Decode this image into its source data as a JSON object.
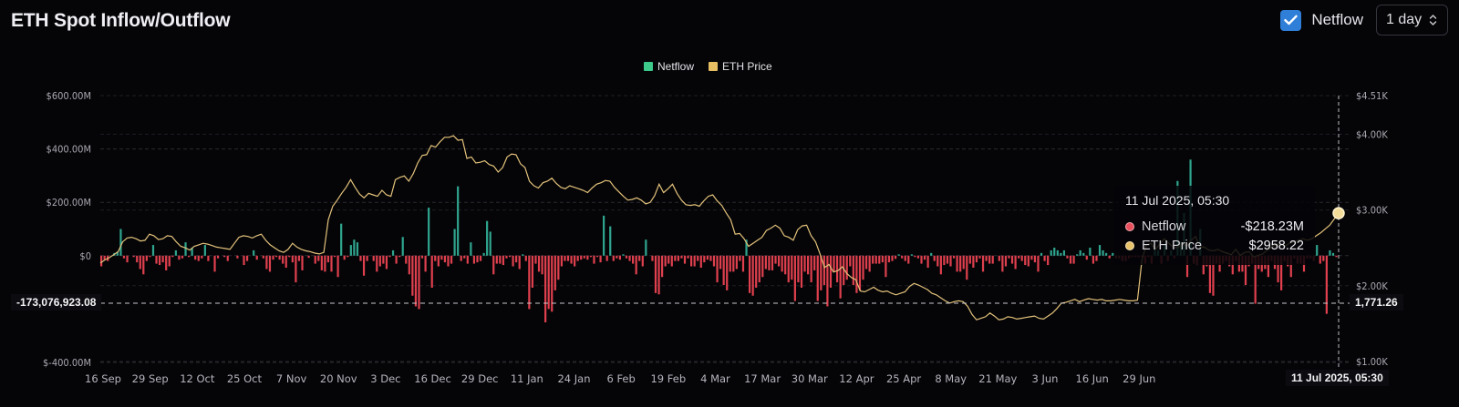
{
  "header": {
    "title": "ETH Spot Inflow/Outflow",
    "netflow_toggle_label": "Netflow",
    "netflow_checked": true,
    "interval_value": "1 day"
  },
  "legend": [
    {
      "label": "Netflow",
      "color": "#3cc98a"
    },
    {
      "label": "ETH Price",
      "color": "#e8be62"
    }
  ],
  "colors": {
    "positive": "#2fa58e",
    "negative": "#e0404e",
    "price": "#e3c27a",
    "grid": "#2a2a30",
    "background": "#050508"
  },
  "tooltip": {
    "date": "11 Jul 2025, 05:30",
    "rows": [
      {
        "name": "Netflow",
        "value": "-$218.23M",
        "dot": "#e8505e"
      },
      {
        "name": "ETH Price",
        "value": "$2958.22",
        "dot": "#e8c36a"
      }
    ]
  },
  "crosshair": {
    "left_value": "-173,076,923.08",
    "right_value": "1,771.26",
    "bottom_value": "11 Jul 2025, 05:30"
  },
  "chart_data": {
    "type": "bar",
    "title": "ETH Spot Inflow/Outflow",
    "xlabel": "",
    "ylabel": "Netflow (USD)",
    "y2label": "ETH Price (USD)",
    "ylim": [
      -400000000,
      600000000
    ],
    "y2lim": [
      1000,
      4510
    ],
    "left_ticks": [
      "$600.00M",
      "$400.00M",
      "$200.00M",
      "$0",
      "$-400.00M"
    ],
    "right_ticks": [
      "$4.51K",
      "$4.00K",
      "$3.00K",
      "$2.00K",
      "$1.00K"
    ],
    "x_ticks": [
      "16 Sep",
      "29 Sep",
      "12 Oct",
      "25 Oct",
      "7 Nov",
      "20 Nov",
      "3 Dec",
      "16 Dec",
      "29 Dec",
      "11 Jan",
      "24 Jan",
      "6 Feb",
      "19 Feb",
      "4 Mar",
      "17 Mar",
      "30 Mar",
      "12 Apr",
      "25 Apr",
      "8 May",
      "21 May",
      "3 Jun",
      "16 Jun",
      "29 Jun"
    ],
    "grid": true,
    "legend_position": "top-center",
    "series": [
      {
        "name": "Netflow",
        "unit": "USD millions",
        "type": "bar",
        "values": [
          -40,
          -15,
          -20,
          0,
          10,
          15,
          100,
          -10,
          -25,
          0,
          -5,
          -25,
          -50,
          -70,
          -20,
          -5,
          40,
          -30,
          -35,
          -25,
          -55,
          -40,
          -5,
          20,
          -15,
          -10,
          50,
          -5,
          30,
          -15,
          -20,
          -10,
          40,
          -20,
          0,
          -60,
          -10,
          0,
          -5,
          -20,
          0,
          0,
          -10,
          0,
          -35,
          -20,
          0,
          20,
          -15,
          0,
          -10,
          -50,
          -60,
          -15,
          -5,
          -15,
          -30,
          -45,
          -5,
          -25,
          -100,
          -20,
          -55,
          0,
          -8,
          0,
          -30,
          -20,
          -55,
          -60,
          -25,
          -60,
          -5,
          -80,
          120,
          -15,
          -5,
          40,
          60,
          50,
          -20,
          -75,
          -20,
          0,
          -20,
          -60,
          -40,
          -30,
          -50,
          -5,
          20,
          -30,
          -5,
          70,
          -30,
          -70,
          -150,
          -190,
          -200,
          -10,
          -60,
          180,
          -120,
          -20,
          -40,
          -15,
          -25,
          -40,
          -30,
          100,
          260,
          -20,
          -10,
          -30,
          50,
          -30,
          -25,
          -20,
          10,
          130,
          90,
          -70,
          -30,
          -30,
          -35,
          -10,
          -5,
          -40,
          -25,
          -50,
          5,
          -20,
          -200,
          -120,
          -30,
          -60,
          -70,
          -250,
          -200,
          -210,
          -130,
          -90,
          -40,
          -20,
          -20,
          -30,
          -40,
          -20,
          -15,
          -10,
          -15,
          -5,
          -30,
          -5,
          -25,
          150,
          -20,
          110,
          -20,
          -10,
          -15,
          5,
          -10,
          -20,
          -30,
          -70,
          -20,
          -40,
          60,
          0,
          -20,
          -140,
          -145,
          -80,
          -40,
          -30,
          -40,
          -20,
          -20,
          -10,
          -30,
          -10,
          -40,
          -40,
          -20,
          -45,
          -25,
          -15,
          -20,
          -40,
          -100,
          -50,
          -110,
          -130,
          -60,
          -60,
          -50,
          -20,
          -60,
          60,
          -140,
          -150,
          -120,
          -100,
          -80,
          -50,
          -55,
          -55,
          -30,
          -40,
          -60,
          -70,
          -100,
          -90,
          -170,
          -100,
          -120,
          -60,
          -70,
          -100,
          -55,
          -170,
          -130,
          -110,
          -190,
          -120,
          -60,
          -100,
          -160,
          -110,
          -90,
          -40,
          -110,
          -140,
          -130,
          -90,
          -50,
          -60,
          -30,
          -30,
          -30,
          -25,
          -80,
          -25,
          -20,
          -12,
          5,
          -10,
          -20,
          -30,
          5,
          -5,
          -10,
          -30,
          -15,
          -45,
          10,
          -20,
          -40,
          -70,
          -35,
          -30,
          -40,
          -10,
          -60,
          -60,
          -50,
          -90,
          -30,
          -45,
          -25,
          -10,
          -60,
          -20,
          -30,
          -30,
          0,
          -20,
          -60,
          -40,
          -10,
          -30,
          -50,
          -10,
          -20,
          -35,
          -40,
          -15,
          -25,
          -60,
          10,
          -20,
          -35,
          20,
          30,
          20,
          10,
          20,
          -10,
          -30,
          -30,
          5,
          20,
          10,
          -15,
          30,
          -30,
          -20,
          40,
          20,
          10,
          -10,
          10,
          -10,
          -10,
          -20,
          -20,
          -10,
          -5,
          -5,
          -5,
          -5,
          -30,
          -5,
          -30,
          30,
          20,
          -30,
          40,
          -20,
          20,
          -10,
          280,
          50,
          160,
          -80,
          360,
          -30,
          -35,
          100,
          -70,
          -40,
          -140,
          -150,
          -30,
          -60,
          -30,
          -20,
          -40,
          -70,
          -20,
          -60,
          -60,
          -110,
          -40,
          -30,
          -180,
          -50,
          -60,
          -50,
          -80,
          -20,
          -50,
          -100,
          -130,
          -20,
          -40,
          -80,
          -10,
          -30,
          -30,
          -60,
          -10,
          -10,
          -20,
          40,
          -30,
          -20,
          -218,
          20,
          10,
          -5
        ]
      },
      {
        "name": "ETH Price",
        "unit": "USD",
        "type": "line",
        "values": [
          2300,
          2340,
          2370,
          2410,
          2450,
          2580,
          2630,
          2640,
          2620,
          2590,
          2600,
          2680,
          2660,
          2610,
          2620,
          2660,
          2650,
          2580,
          2520,
          2500,
          2470,
          2520,
          2540,
          2560,
          2550,
          2530,
          2510,
          2500,
          2490,
          2480,
          2560,
          2640,
          2660,
          2650,
          2630,
          2660,
          2680,
          2600,
          2540,
          2500,
          2460,
          2440,
          2480,
          2560,
          2510,
          2480,
          2460,
          2450,
          2430,
          2420,
          2440,
          2870,
          3050,
          3130,
          3220,
          3300,
          3400,
          3300,
          3210,
          3160,
          3220,
          3200,
          3180,
          3260,
          3200,
          3180,
          3400,
          3430,
          3450,
          3380,
          3480,
          3620,
          3720,
          3730,
          3850,
          3830,
          3900,
          3960,
          3960,
          3980,
          3920,
          3930,
          3680,
          3700,
          3620,
          3630,
          3650,
          3600,
          3580,
          3500,
          3560,
          3700,
          3740,
          3730,
          3610,
          3560,
          3380,
          3320,
          3290,
          3360,
          3380,
          3420,
          3350,
          3300,
          3280,
          3320,
          3300,
          3280,
          3260,
          3230,
          3290,
          3340,
          3360,
          3390,
          3380,
          3300,
          3240,
          3180,
          3130,
          3140,
          3160,
          3130,
          3080,
          3100,
          3190,
          3340,
          3230,
          3280,
          3340,
          3220,
          3130,
          3070,
          3060,
          3070,
          3050,
          3120,
          3180,
          3200,
          3120,
          3060,
          2960,
          2870,
          2680,
          2690,
          2620,
          2520,
          2560,
          2600,
          2640,
          2730,
          2760,
          2800,
          2760,
          2660,
          2640,
          2600,
          2740,
          2790,
          2800,
          2660,
          2580,
          2420,
          2240,
          2280,
          2180,
          2200,
          2250,
          2160,
          2110,
          2080,
          1930,
          1920,
          1950,
          1980,
          1940,
          1920,
          1930,
          1900,
          1880,
          1900,
          1920,
          1990,
          2030,
          2010,
          1980,
          1950,
          1900,
          1880,
          1840,
          1800,
          1770,
          1790,
          1800,
          1790,
          1730,
          1620,
          1550,
          1570,
          1590,
          1640,
          1600,
          1550,
          1560,
          1590,
          1580,
          1560,
          1570,
          1580,
          1590,
          1600,
          1570,
          1560,
          1600,
          1640,
          1700,
          1770,
          1780,
          1800,
          1820,
          1790,
          1810,
          1830,
          1820,
          1810,
          1820,
          1800,
          1800,
          1810,
          1820,
          1810,
          1800,
          1800,
          1810,
          2340,
          2540,
          2560,
          2480,
          2550,
          2620,
          2560,
          2510,
          2500,
          2560,
          2520,
          2600,
          2650,
          2510,
          2510,
          2470,
          2460,
          2480,
          2450,
          2430,
          2410,
          2480,
          2400,
          2440,
          2450,
          2380,
          2400,
          2420,
          2470,
          2510,
          2550,
          2540,
          2520,
          2560,
          2580,
          2600,
          2620,
          2600,
          2620,
          2660,
          2700,
          2750,
          2800,
          2880,
          2958
        ]
      }
    ],
    "highlight": {
      "x": "11 Jul 2025, 05:30",
      "netflow": "-$218.23M",
      "eth_price": "$2958.22"
    }
  }
}
